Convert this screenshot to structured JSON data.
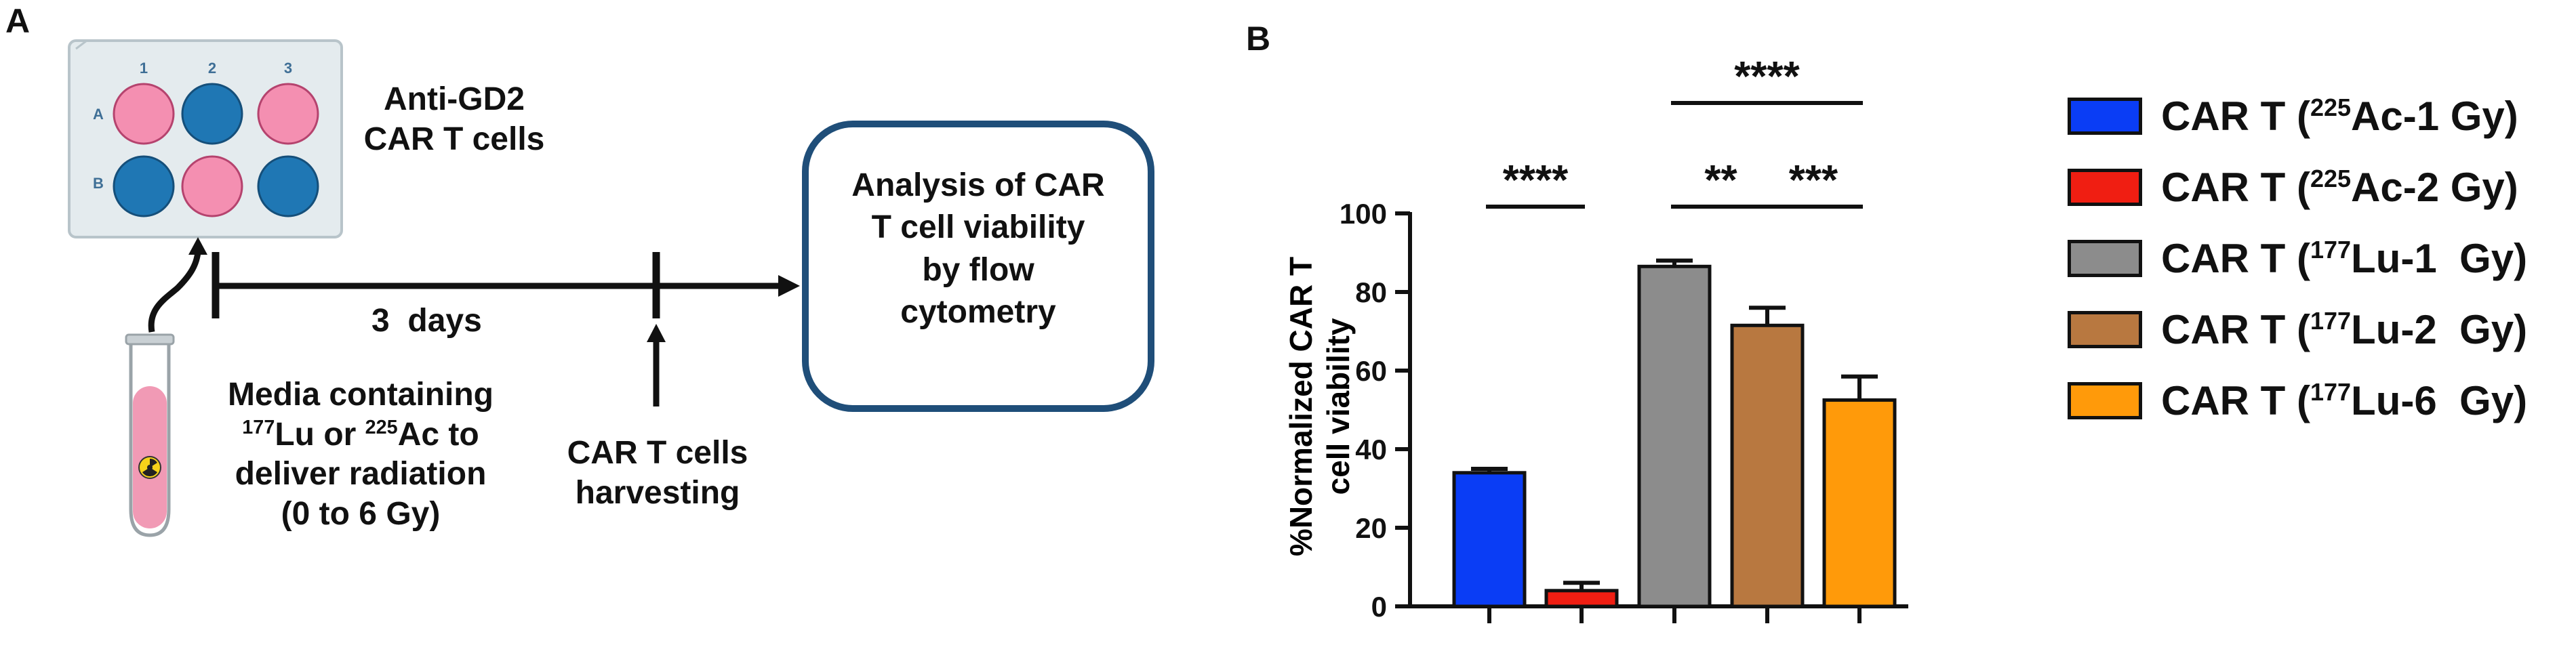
{
  "panel_a": {
    "label": "A",
    "plate": {
      "col_labels": [
        "1",
        "2",
        "3"
      ],
      "row_labels": [
        "A",
        "B"
      ],
      "wells": [
        [
          "pink",
          "blue",
          "pink"
        ],
        [
          "blue",
          "pink",
          "blue"
        ]
      ]
    },
    "cells_label_line1": "Anti-GD2",
    "cells_label_line2": "CAR T cells",
    "days_label": "3  days",
    "analysis_box_lines": [
      "Analysis of CAR",
      "T cell viability",
      "by flow",
      "cytometry"
    ],
    "media_line1": "Media containing",
    "media_lu_sup": "177",
    "media_lu_text": "Lu or ",
    "media_ac_sup": "225",
    "media_ac_text": "Ac to",
    "media_line3": "deliver radiation",
    "media_line4": "(0 to 6 Gy)",
    "harvest_line1": "CAR T cells",
    "harvest_line2": "harvesting"
  },
  "panel_b": {
    "label": "B"
  },
  "colors": {
    "well_pink": "#f48fb1",
    "well_blue": "#1f77b4",
    "plate_fill": "#e4ebee",
    "box_border": "#1f4e79",
    "tube_liquid": "#f19ab5"
  },
  "chart_data": {
    "type": "bar",
    "ylabel_line1": "%Normalized CAR T",
    "ylabel_line2": "cell viability",
    "ylim": [
      0,
      100
    ],
    "yticks": [
      0,
      20,
      40,
      60,
      80,
      100
    ],
    "categories": [
      "CAR T (225Ac-1 Gy)",
      "CAR T (225Ac-2 Gy)",
      "CAR T (177Lu-1 Gy)",
      "CAR T (177Lu-2 Gy)",
      "CAR T (177Lu-6 Gy)"
    ],
    "values": [
      34,
      4,
      86.5,
      71.5,
      52.5
    ],
    "errors": [
      1,
      2,
      1.5,
      4.5,
      6
    ],
    "colors": [
      "#0a3df5",
      "#f01e12",
      "#8c8c8c",
      "#b87840",
      "#ff9a0a"
    ],
    "legend": [
      {
        "pre": "CAR T (",
        "sup": "225",
        "post": "Ac-1 Gy)"
      },
      {
        "pre": "CAR T (",
        "sup": "225",
        "post": "Ac-2 Gy)"
      },
      {
        "pre": "CAR T (",
        "sup": "177",
        "post": "Lu-1  Gy)"
      },
      {
        "pre": "CAR T (",
        "sup": "177",
        "post": "Lu-2  Gy)"
      },
      {
        "pre": "CAR T (",
        "sup": "177",
        "post": "Lu-6  Gy)"
      }
    ],
    "significance": [
      {
        "from": 0,
        "to": 1,
        "label": "****",
        "level": 0
      },
      {
        "from": 2,
        "to": 3,
        "label": "**",
        "level": 0
      },
      {
        "from": 3,
        "to": 4,
        "label": "***",
        "level": 0
      },
      {
        "from": 2,
        "to": 4,
        "label": "****",
        "level": 1
      }
    ]
  }
}
